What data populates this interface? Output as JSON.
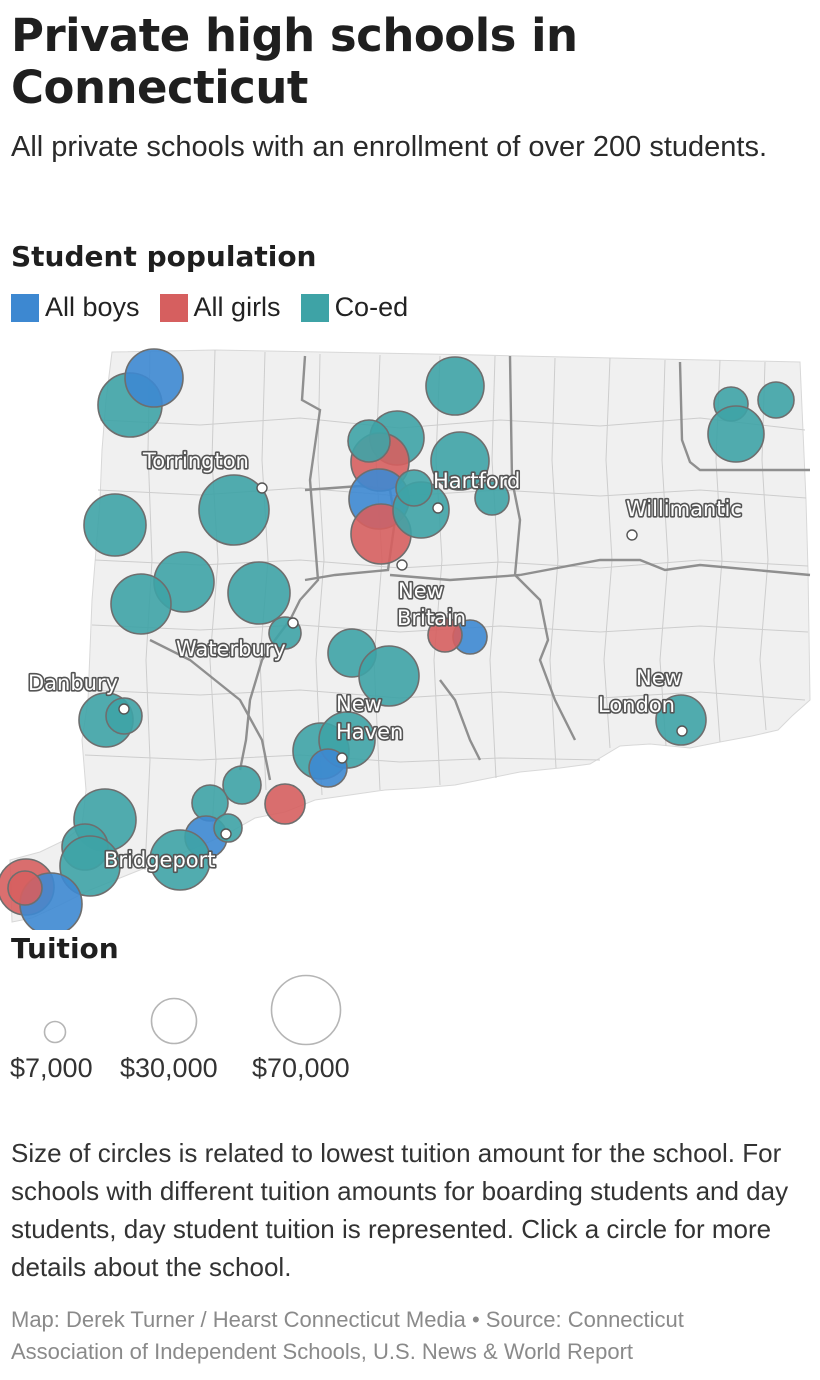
{
  "title": "Private high schools in Connecticut",
  "subtitle": "All private schools with an enrollment of over 200 students.",
  "legend": {
    "title": "Student population",
    "items": [
      {
        "label": "All boys",
        "color": "#3d88d1"
      },
      {
        "label": "All girls",
        "color": "#d65f5f"
      },
      {
        "label": "Co-ed",
        "color": "#3ea3a6"
      }
    ]
  },
  "cities": {
    "torrington": "Torrington",
    "hartford": "Hartford",
    "willimantic": "Willimantic",
    "new_britain_1": "New",
    "new_britain_2": "Britain",
    "waterbury": "Waterbury",
    "danbury": "Danbury",
    "new_london_1": "New",
    "new_london_2": "London",
    "new_haven_1": "New",
    "new_haven_2": "Haven",
    "bridgeport": "Bridgeport"
  },
  "tuition_legend": {
    "title": "Tuition",
    "labels": [
      "$7,000",
      "$30,000",
      "$70,000"
    ]
  },
  "note": "Size of circles is related to lowest tuition amount for the school. For schools with different tuition amounts for boarding students and day students, day student tuition is represented. Click a circle for more details about the school.",
  "credit": "Map: Derek Turner / Hearst Connecticut Media • Source: Connecticut Association of Independent Schools, U.S. News & World Report"
}
